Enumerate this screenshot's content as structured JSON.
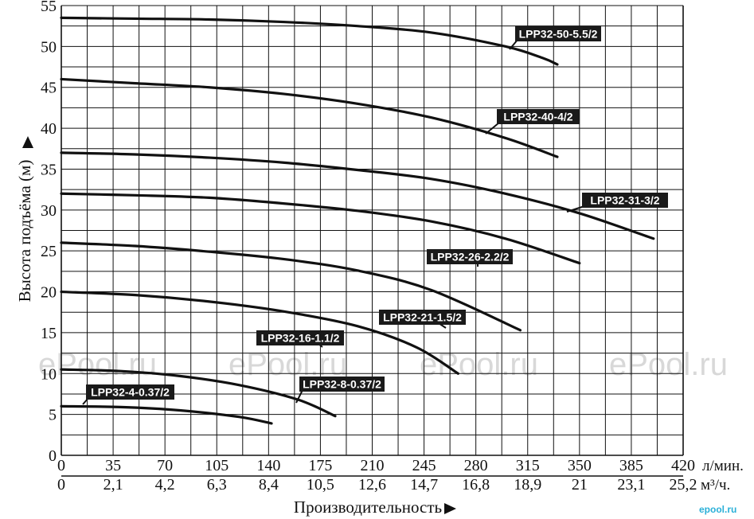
{
  "chart_data": {
    "type": "line",
    "ylabel": "Высота подъёма (м)",
    "xlabel": "Производительность",
    "xunit_primary": "л/мин.",
    "xunit_secondary": "м³/ч.",
    "xlim": [
      0,
      420
    ],
    "ylim": [
      0,
      55
    ],
    "grid": true,
    "x_ticks": [
      0,
      35,
      70,
      105,
      140,
      175,
      210,
      245,
      280,
      315,
      350,
      385,
      420
    ],
    "x_ticks_secondary": [
      "0",
      "2,1",
      "4,2",
      "6,3",
      "8,4",
      "10,5",
      "12,6",
      "14,7",
      "16,8",
      "18,9",
      "21",
      "23,1",
      "25,2"
    ],
    "y_ticks": [
      0,
      5,
      10,
      15,
      20,
      25,
      30,
      35,
      40,
      45,
      50,
      55
    ],
    "series": [
      {
        "name": "LPP32-50-5.5/2",
        "x": [
          0,
          50,
          100,
          150,
          200,
          250,
          300,
          325,
          335
        ],
        "y": [
          53.5,
          53.4,
          53.3,
          53.0,
          52.5,
          51.7,
          50.0,
          48.6,
          47.8
        ]
      },
      {
        "name": "LPP32-40-4/2",
        "x": [
          0,
          50,
          100,
          150,
          200,
          250,
          300,
          335
        ],
        "y": [
          46.0,
          45.5,
          45.0,
          44.2,
          43.0,
          41.3,
          38.8,
          36.5
        ]
      },
      {
        "name": "LPP32-31-3/2",
        "x": [
          0,
          50,
          100,
          150,
          200,
          250,
          300,
          350,
          400
        ],
        "y": [
          37.0,
          36.8,
          36.4,
          35.8,
          34.9,
          33.8,
          32.0,
          29.6,
          26.5
        ]
      },
      {
        "name": "LPP32-26-2.2/2",
        "x": [
          0,
          50,
          100,
          150,
          200,
          250,
          300,
          350
        ],
        "y": [
          32.0,
          31.8,
          31.5,
          30.8,
          29.9,
          28.6,
          26.5,
          23.5
        ]
      },
      {
        "name": "LPP32-21-1.5/2",
        "x": [
          0,
          50,
          100,
          150,
          200,
          250,
          310
        ],
        "y": [
          26.0,
          25.6,
          24.9,
          24.0,
          22.6,
          20.2,
          15.3
        ]
      },
      {
        "name": "LPP32-16-1.1/2",
        "x": [
          0,
          50,
          100,
          150,
          200,
          240,
          268
        ],
        "y": [
          20.0,
          19.6,
          18.8,
          17.6,
          15.8,
          13.2,
          10.0
        ]
      },
      {
        "name": "LPP32-8-0.37/2",
        "x": [
          0,
          40,
          80,
          120,
          160,
          185
        ],
        "y": [
          10.5,
          10.3,
          9.7,
          8.6,
          6.8,
          4.8
        ]
      },
      {
        "name": "LPP32-4-0.37/2",
        "x": [
          0,
          40,
          80,
          120,
          142
        ],
        "y": [
          6.0,
          5.9,
          5.5,
          4.7,
          3.9
        ]
      }
    ],
    "annotations": [
      {
        "text": "LPP32-50-5.5/2",
        "series": 0
      },
      {
        "text": "LPP32-40-4/2",
        "series": 1
      },
      {
        "text": "LPP32-31-3/2",
        "series": 2
      },
      {
        "text": "LPP32-26-2.2/2",
        "series": 3
      },
      {
        "text": "LPP32-21-1.5/2",
        "series": 4
      },
      {
        "text": "LPP32-16-1.1/2",
        "series": 5
      },
      {
        "text": "LPP32-8-0.37/2",
        "series": 6
      },
      {
        "text": "LPP32-4-0.37/2",
        "series": 7
      }
    ]
  },
  "watermark": {
    "text": "ePool.ru",
    "brand": "epool.ru"
  },
  "colors": {
    "curve": "#111111",
    "label_bg": "#1a1a1a",
    "grid": "#111111",
    "watermark": "#d8d8d8",
    "brand": "#2ab0d8"
  }
}
